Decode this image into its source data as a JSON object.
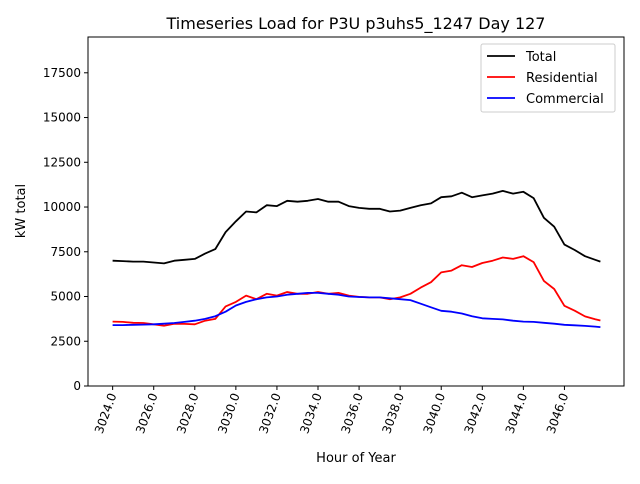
{
  "chart_data": {
    "type": "line",
    "title": "Timeseries Load for P3U p3uhs5_1247  Day 127",
    "xlabel": "Hour of Year",
    "ylabel": "kW total",
    "xlim": [
      3022.8,
      3048.9
    ],
    "ylim": [
      0,
      19500
    ],
    "xticks": [
      3024,
      3026,
      3028,
      3030,
      3032,
      3034,
      3036,
      3038,
      3040,
      3042,
      3044,
      3046
    ],
    "xtick_labels": [
      "3024.0",
      "3026.0",
      "3028.0",
      "3030.0",
      "3032.0",
      "3034.0",
      "3036.0",
      "3038.0",
      "3040.0",
      "3042.0",
      "3044.0",
      "3046.0"
    ],
    "yticks": [
      0,
      2500,
      5000,
      7500,
      10000,
      12500,
      15000,
      17500
    ],
    "ytick_labels": [
      "0",
      "2500",
      "5000",
      "7500",
      "10000",
      "12500",
      "15000",
      "17500"
    ],
    "legend_position": "top-right",
    "grid": false,
    "x": [
      3024,
      3024.5,
      3025,
      3025.5,
      3026,
      3026.5,
      3027,
      3027.5,
      3028,
      3028.5,
      3029,
      3029.5,
      3030,
      3030.5,
      3031,
      3031.5,
      3032,
      3032.5,
      3033,
      3033.5,
      3034,
      3034.5,
      3035,
      3035.5,
      3036,
      3036.5,
      3037,
      3037.5,
      3038,
      3038.5,
      3039,
      3039.5,
      3040,
      3040.5,
      3041,
      3041.5,
      3042,
      3042.5,
      3043,
      3043.5,
      3044,
      3044.5,
      3045,
      3045.5,
      3046,
      3046.5,
      3047,
      3047.5,
      3047.75
    ],
    "series": [
      {
        "name": "Total",
        "color": "#000000",
        "values": [
          7000,
          6980,
          6950,
          6950,
          6900,
          6850,
          7000,
          7050,
          7100,
          7400,
          7650,
          8600,
          9200,
          9750,
          9700,
          10100,
          10050,
          10350,
          10300,
          10350,
          10450,
          10300,
          10300,
          10050,
          9950,
          9900,
          9900,
          9750,
          9800,
          9950,
          10100,
          10200,
          10550,
          10600,
          10800,
          10550,
          10650,
          10750,
          10900,
          10750,
          10850,
          10500,
          9400,
          8900,
          7900,
          7600,
          7250,
          7050,
          6950
        ]
      },
      {
        "name": "Residential",
        "color": "#ff0000",
        "values": [
          3600,
          3580,
          3530,
          3520,
          3450,
          3370,
          3480,
          3470,
          3450,
          3650,
          3750,
          4450,
          4700,
          5050,
          4850,
          5150,
          5050,
          5250,
          5150,
          5150,
          5250,
          5150,
          5200,
          5050,
          4980,
          4950,
          4950,
          4850,
          4950,
          5150,
          5500,
          5800,
          6350,
          6450,
          6750,
          6650,
          6870,
          7000,
          7180,
          7100,
          7250,
          6920,
          5870,
          5420,
          4480,
          4210,
          3890,
          3730,
          3660
        ]
      },
      {
        "name": "Commercial",
        "color": "#0000ff",
        "values": [
          3400,
          3400,
          3420,
          3430,
          3450,
          3480,
          3520,
          3580,
          3650,
          3750,
          3900,
          4150,
          4500,
          4700,
          4850,
          4950,
          5000,
          5100,
          5150,
          5200,
          5200,
          5150,
          5100,
          5000,
          4970,
          4950,
          4950,
          4900,
          4850,
          4800,
          4600,
          4400,
          4200,
          4150,
          4050,
          3900,
          3780,
          3750,
          3720,
          3650,
          3600,
          3580,
          3530,
          3480,
          3420,
          3390,
          3360,
          3320,
          3290
        ]
      }
    ]
  }
}
